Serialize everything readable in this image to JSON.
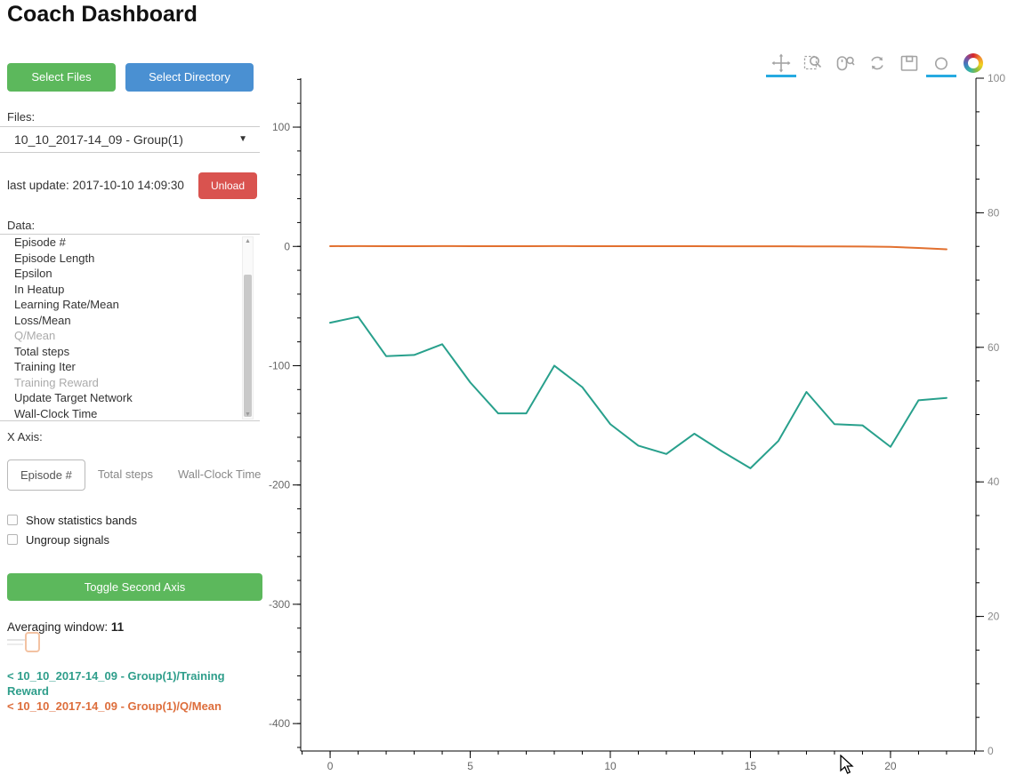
{
  "app": {
    "title": "Coach Dashboard"
  },
  "sidebar": {
    "select_files_label": "Select Files",
    "select_directory_label": "Select Directory",
    "files_label": "Files:",
    "files_selected": "10_10_2017-14_09 - Group(1)",
    "last_update": "last update: 2017-10-10 14:09:30",
    "unload_label": "Unload",
    "data_label": "Data:",
    "data_items": [
      {
        "label": "Episode #",
        "dimmed": false
      },
      {
        "label": "Episode Length",
        "dimmed": false
      },
      {
        "label": "Epsilon",
        "dimmed": false
      },
      {
        "label": "In Heatup",
        "dimmed": false
      },
      {
        "label": "Learning Rate/Mean",
        "dimmed": false
      },
      {
        "label": "Loss/Mean",
        "dimmed": false
      },
      {
        "label": "Q/Mean",
        "dimmed": true
      },
      {
        "label": "Total steps",
        "dimmed": false
      },
      {
        "label": "Training Iter",
        "dimmed": false
      },
      {
        "label": "Training Reward",
        "dimmed": true
      },
      {
        "label": "Update Target Network",
        "dimmed": false
      },
      {
        "label": "Wall-Clock Time",
        "dimmed": false
      }
    ],
    "x_axis_label": "X Axis:",
    "x_axis_options": [
      {
        "label": "Episode #",
        "active": true
      },
      {
        "label": "Total steps",
        "active": false
      },
      {
        "label": "Wall-Clock Time",
        "active": false
      }
    ],
    "checkboxes": [
      {
        "label": "Show statistics bands",
        "checked": false
      },
      {
        "label": "Ungroup signals",
        "checked": false
      }
    ],
    "toggle_second_axis_label": "Toggle Second Axis",
    "averaging_label": "Averaging window:",
    "averaging_value": "11",
    "legend": [
      {
        "text": "< 10_10_2017-14_09 - Group(1)/Training Reward",
        "color": "#2f9e8b"
      },
      {
        "text": "< 10_10_2017-14_09 - Group(1)/Q/Mean",
        "color": "#dd6e3c"
      }
    ]
  },
  "toolbar": {
    "active_tool_underline_color": "#26aae1",
    "tools": [
      {
        "name": "pan",
        "active": true
      },
      {
        "name": "box-zoom",
        "active": false
      },
      {
        "name": "wheel-zoom",
        "active": false
      },
      {
        "name": "reset",
        "active": false
      },
      {
        "name": "save",
        "active": false
      },
      {
        "name": "hover",
        "active": true
      },
      {
        "name": "bokeh-logo",
        "active": false
      }
    ]
  },
  "chart_data": {
    "type": "line",
    "title": "",
    "xlabel": "",
    "ylabel": "",
    "grid": false,
    "legend_position": "sidebar",
    "x": [
      0,
      1,
      2,
      3,
      4,
      5,
      6,
      7,
      8,
      9,
      10,
      11,
      12,
      13,
      14,
      15,
      16,
      17,
      18,
      19,
      20,
      21,
      22
    ],
    "series": [
      {
        "name": "10_10_2017-14_09 - Group(1)/Training Reward",
        "color": "#28a08c",
        "axis": "left",
        "values": [
          -64,
          -59,
          -92,
          -91,
          -82,
          -114,
          -140,
          -140,
          -100,
          -118,
          -149,
          -167,
          -174,
          -157,
          -172,
          -186,
          -163,
          -122,
          -149,
          -150,
          -168,
          -129,
          -127
        ]
      },
      {
        "name": "10_10_2017-14_09 - Group(1)/Q/Mean",
        "color": "#e2702f",
        "axis": "left",
        "values": [
          0.2,
          0.3,
          0.2,
          0.2,
          0.3,
          0.2,
          0.2,
          0.2,
          0.3,
          0.2,
          0.2,
          0.2,
          0.2,
          0.2,
          0.1,
          0.1,
          0.1,
          0,
          0,
          -0.1,
          -0.4,
          -1.3,
          -2.4
        ]
      }
    ],
    "xlim": [
      -1.05,
      23.05
    ],
    "ylim_left": [
      -423,
      141
    ],
    "ylim_right": [
      0,
      100
    ],
    "x_major_ticks": [
      0,
      5,
      10,
      15,
      20
    ],
    "x_minor_step": 1,
    "y_left_major_ticks": [
      100,
      0,
      -100,
      -200,
      -300,
      -400
    ],
    "y_left_minor_step": 20,
    "y_right_major_ticks": [
      0,
      20,
      40,
      60,
      80,
      100
    ],
    "y_right_minor_step": 5
  }
}
